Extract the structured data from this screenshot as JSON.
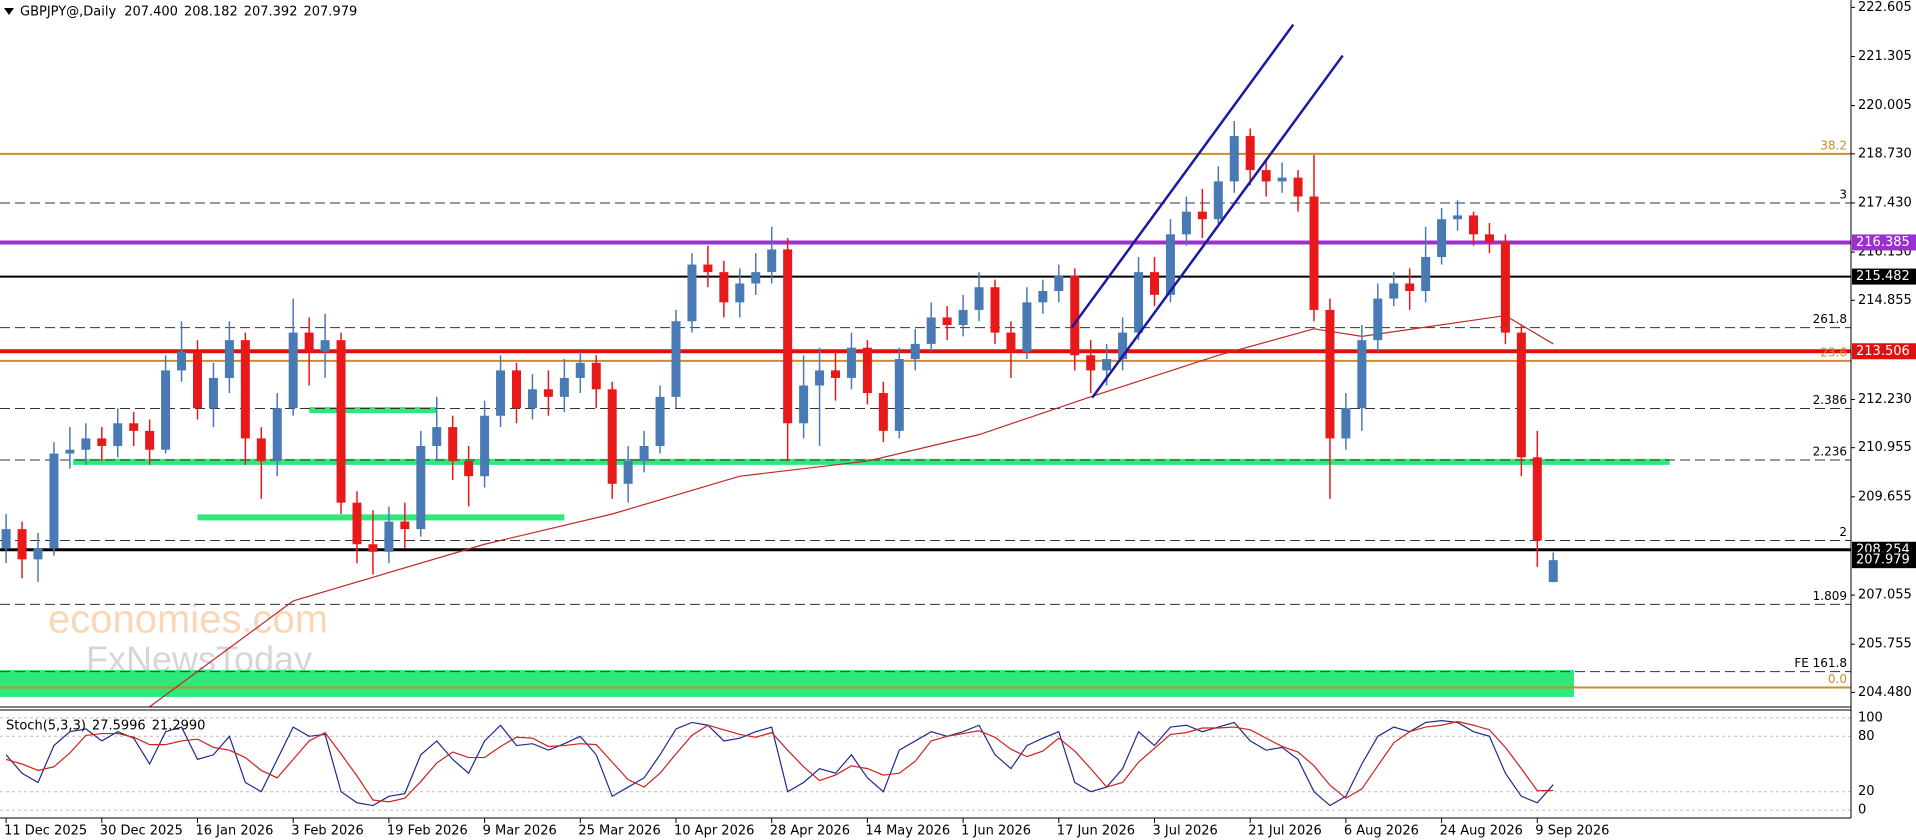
{
  "chart_data": {
    "type": "candlestick",
    "title": "GBPJPY@,Daily",
    "header_values": [
      "207.400",
      "208.182",
      "207.392",
      "207.979"
    ],
    "categories": [
      "11 Dec 2025",
      null,
      null,
      null,
      null,
      null,
      "30 Dec 2025",
      null,
      null,
      null,
      null,
      null,
      "16 Jan 2026",
      null,
      null,
      null,
      null,
      null,
      "3 Feb 2026",
      null,
      null,
      null,
      null,
      null,
      "19 Feb 2026",
      null,
      null,
      null,
      null,
      null,
      "9 Mar 2026",
      null,
      null,
      null,
      null,
      null,
      "25 Mar 2026",
      null,
      null,
      null,
      null,
      null,
      "10 Apr 2026",
      null,
      null,
      null,
      null,
      null,
      "28 Apr 2026",
      null,
      null,
      null,
      null,
      null,
      "14 May 2026",
      null,
      null,
      null,
      null,
      null,
      "1 Jun 2026",
      null,
      null,
      null,
      null,
      null,
      "17 Jun 2026",
      null,
      null,
      null,
      null,
      null,
      "3 Jul 2026",
      null,
      null,
      null,
      null,
      null,
      "21 Jul 2026",
      null,
      null,
      null,
      null,
      null,
      "6 Aug 2026",
      null,
      null,
      null,
      null,
      null,
      "24 Aug 2026",
      null,
      null,
      null,
      null,
      null,
      "9 Sep 2026",
      null
    ],
    "open": [
      208.3,
      208.8,
      208.0,
      208.3,
      210.8,
      210.9,
      211.2,
      211.0,
      211.6,
      211.4,
      210.9,
      213.0,
      213.5,
      212.0,
      212.8,
      213.8,
      211.2,
      210.6,
      212.0,
      214.0,
      213.5,
      213.8,
      209.5,
      208.4,
      208.2,
      209.0,
      208.8,
      211.0,
      211.5,
      210.6,
      210.2,
      211.8,
      213.0,
      212.0,
      212.5,
      212.3,
      212.8,
      213.2,
      212.5,
      210.0,
      210.6,
      211.0,
      212.3,
      214.3,
      215.8,
      215.6,
      214.8,
      215.3,
      215.6,
      216.2,
      211.6,
      212.6,
      213.0,
      212.8,
      213.6,
      212.4,
      211.4,
      213.3,
      213.7,
      214.4,
      214.2,
      214.6,
      215.2,
      214.0,
      213.5,
      214.8,
      215.1,
      215.5,
      213.4,
      213.0,
      213.3,
      214.0,
      215.6,
      215.0,
      216.6,
      217.2,
      217.0,
      218.0,
      219.2,
      218.3,
      218.0,
      218.1,
      217.6,
      214.6,
      211.2,
      212.0,
      213.8,
      214.9,
      215.3,
      215.1,
      216.0,
      217.0,
      217.1,
      216.6,
      216.4,
      214.0,
      210.7,
      207.4
    ],
    "high": [
      209.2,
      209.0,
      208.7,
      211.1,
      211.5,
      211.6,
      211.5,
      212.0,
      211.9,
      211.7,
      213.4,
      214.3,
      213.8,
      213.2,
      214.3,
      214.0,
      211.5,
      212.4,
      214.9,
      214.4,
      214.5,
      214.0,
      209.8,
      209.3,
      209.4,
      209.5,
      211.4,
      212.3,
      211.8,
      211.0,
      212.2,
      213.4,
      213.2,
      212.9,
      213.0,
      213.3,
      213.5,
      213.4,
      212.7,
      211.0,
      211.4,
      212.6,
      214.6,
      216.1,
      216.3,
      215.9,
      215.7,
      216.1,
      216.8,
      216.5,
      213.4,
      213.6,
      213.5,
      214.0,
      213.8,
      212.7,
      213.6,
      214.1,
      214.8,
      214.7,
      215.0,
      215.6,
      215.4,
      214.3,
      215.2,
      215.4,
      215.8,
      215.7,
      213.8,
      213.7,
      214.4,
      216.0,
      216.0,
      217.0,
      217.6,
      217.8,
      218.4,
      219.6,
      219.4,
      218.6,
      218.5,
      218.3,
      218.7,
      214.9,
      212.4,
      214.2,
      215.3,
      215.6,
      215.7,
      216.8,
      217.3,
      217.5,
      217.2,
      216.9,
      216.6,
      214.2,
      211.4,
      208.182
    ],
    "low": [
      207.9,
      207.5,
      207.4,
      208.1,
      210.4,
      210.5,
      210.6,
      210.7,
      211.0,
      210.5,
      210.8,
      212.7,
      211.7,
      211.5,
      212.4,
      210.5,
      209.6,
      210.2,
      211.8,
      212.6,
      212.8,
      209.2,
      207.9,
      207.6,
      207.9,
      208.3,
      208.6,
      210.6,
      210.1,
      209.4,
      209.9,
      211.5,
      211.6,
      211.7,
      211.8,
      211.9,
      212.4,
      212.0,
      209.6,
      209.5,
      210.3,
      210.8,
      212.0,
      214.0,
      215.2,
      214.4,
      214.4,
      215.0,
      215.3,
      210.6,
      211.2,
      211.0,
      212.2,
      212.5,
      212.1,
      211.1,
      211.2,
      213.0,
      213.5,
      213.8,
      213.9,
      214.3,
      213.7,
      212.8,
      213.3,
      214.5,
      214.8,
      213.0,
      212.4,
      212.6,
      213.0,
      213.8,
      214.7,
      214.8,
      216.3,
      216.5,
      216.8,
      217.7,
      217.9,
      217.6,
      217.7,
      217.2,
      214.3,
      209.6,
      210.9,
      211.4,
      213.5,
      214.7,
      214.6,
      214.8,
      215.8,
      216.7,
      216.3,
      216.1,
      213.7,
      210.2,
      207.8,
      207.392
    ],
    "close": [
      208.8,
      208.0,
      208.3,
      210.8,
      210.9,
      211.2,
      211.0,
      211.6,
      211.4,
      210.9,
      213.0,
      213.5,
      212.0,
      212.8,
      213.8,
      211.2,
      210.6,
      212.0,
      214.0,
      213.5,
      213.8,
      209.5,
      208.4,
      208.2,
      209.0,
      208.8,
      211.0,
      211.5,
      210.6,
      210.2,
      211.8,
      213.0,
      212.0,
      212.5,
      212.3,
      212.8,
      213.2,
      212.5,
      210.0,
      210.6,
      211.0,
      212.3,
      214.3,
      215.8,
      215.6,
      214.8,
      215.3,
      215.6,
      216.2,
      211.6,
      212.6,
      213.0,
      212.8,
      213.6,
      212.4,
      211.4,
      213.3,
      213.7,
      214.4,
      214.2,
      214.6,
      215.2,
      214.0,
      213.5,
      214.8,
      215.1,
      215.5,
      213.4,
      213.0,
      213.3,
      214.0,
      215.6,
      215.0,
      216.6,
      217.2,
      217.0,
      218.0,
      219.2,
      218.3,
      218.0,
      218.1,
      217.6,
      214.6,
      211.2,
      212.0,
      213.8,
      214.9,
      215.3,
      215.1,
      216.0,
      217.0,
      217.1,
      216.6,
      216.4,
      214.0,
      210.7,
      208.5,
      207.979
    ],
    "up_color": "#4a7ab4",
    "down_color": "#e8191b",
    "ylim": [
      204.12,
      222.8
    ],
    "yticks": [
      222.605,
      221.305,
      220.005,
      {
        "value": 218.73,
        "label": "218.730"
      },
      {
        "value": 217.43,
        "label": "217.430"
      },
      {
        "value": 216.13,
        "label": "216.130"
      },
      214.855,
      {
        "value": 212.23,
        "label": "212.230"
      },
      210.955,
      209.655,
      207.055,
      205.755,
      {
        "value": 204.48,
        "label": "204.480"
      }
    ],
    "moving_average": {
      "color": "#c0282a",
      "x": [
        9,
        18,
        30,
        38,
        46,
        54,
        61,
        68,
        76,
        82,
        85,
        94,
        97
      ],
      "values": [
        204.1,
        206.9,
        208.4,
        209.2,
        210.2,
        210.6,
        211.3,
        212.3,
        213.4,
        214.1,
        213.9,
        214.45,
        213.7
      ]
    },
    "levels": [
      {
        "value": 218.73,
        "label": "38.2",
        "color": "#c8902a",
        "width": 2,
        "dashed": false,
        "tag": false
      },
      {
        "value": 217.43,
        "label": "3",
        "color": "#333333",
        "width": 1,
        "dashed": true,
        "tag": false
      },
      {
        "value": 216.385,
        "color": "#9b30d0",
        "width": 4,
        "dashed": false,
        "tag": true
      },
      {
        "value": 215.482,
        "color": "#000000",
        "width": 2,
        "dashed": false,
        "tag": true
      },
      {
        "value": 214.13,
        "label": "261.8",
        "color": "#333333",
        "width": 1,
        "dashed": true,
        "tag": false
      },
      {
        "value": 213.506,
        "color": "#e01010",
        "width": 4,
        "dashed": false,
        "tag": true
      },
      {
        "value": 213.25,
        "label": "23.6",
        "color": "#c8902a",
        "width": 2,
        "dashed": false,
        "tag": false
      },
      {
        "value": 211.99,
        "label": "2.386",
        "color": "#333333",
        "width": 1,
        "dashed": true,
        "tag": false
      },
      {
        "value": 210.63,
        "label": "2.236",
        "color": "#333333",
        "width": 1,
        "dashed": true,
        "tag": false
      },
      {
        "value": 208.5,
        "label": "2",
        "color": "#333333",
        "width": 1,
        "dashed": true,
        "tag": false
      },
      {
        "value": 208.254,
        "color": "#000000",
        "width": 3,
        "dashed": false,
        "tag": true
      },
      {
        "value": 206.81,
        "label": "1.809",
        "color": "#333333",
        "width": 1,
        "dashed": true,
        "tag": false
      },
      {
        "value": 205.03,
        "label": "FE 161.8",
        "color": "#333333",
        "width": 1,
        "dashed": true,
        "tag": false
      },
      {
        "value": 204.61,
        "label": "0.0",
        "color": "#c8902a",
        "width": 2,
        "dashed": false,
        "tag": false
      }
    ],
    "zones": [
      {
        "y": [
          204.36,
          205.07
        ],
        "x": [
          -0.4,
          98.3
        ],
        "color": "#2ee87a"
      }
    ],
    "segments": [
      {
        "y": 211.95,
        "x": [
          19,
          27
        ],
        "color": "#2ee87a"
      },
      {
        "y": 210.58,
        "x": [
          4.2,
          104.3
        ],
        "color": "#2ee87a"
      },
      {
        "y": 209.11,
        "x": [
          12,
          35
        ],
        "color": "#2ee87a"
      }
    ],
    "trendlines": [
      {
        "x": [
          66.8,
          80.7
        ],
        "y": [
          214.13,
          222.15
        ],
        "color": "#1a1aa0"
      },
      {
        "x": [
          68.1,
          83.8
        ],
        "y": [
          212.28,
          221.33
        ],
        "color": "#1a1aa0"
      }
    ],
    "close_tag": true,
    "watermarks": [
      "economies.com",
      "FxNewsToday"
    ],
    "stoch": {
      "title": "Stoch(5,3,3)",
      "header_values": [
        "27.5996",
        "21.2990"
      ],
      "ylim": [
        -8.5,
        108.5
      ],
      "yticks": [
        100,
        80,
        20,
        0
      ],
      "series": [
        {
          "name": "%K",
          "color": "#1f2a8c",
          "values": [
            60,
            40,
            30,
            70,
            85,
            88,
            75,
            85,
            78,
            50,
            85,
            90,
            55,
            60,
            80,
            30,
            20,
            55,
            90,
            80,
            82,
            20,
            8,
            5,
            15,
            18,
            60,
            75,
            55,
            40,
            75,
            92,
            70,
            72,
            65,
            72,
            80,
            60,
            15,
            25,
            35,
            60,
            88,
            95,
            92,
            75,
            78,
            85,
            90,
            20,
            30,
            45,
            40,
            60,
            35,
            20,
            65,
            75,
            85,
            80,
            85,
            92,
            60,
            45,
            70,
            78,
            85,
            30,
            20,
            25,
            45,
            85,
            70,
            90,
            92,
            85,
            90,
            95,
            75,
            65,
            68,
            55,
            20,
            5,
            15,
            50,
            80,
            90,
            85,
            95,
            97,
            95,
            85,
            80,
            40,
            15,
            8,
            27.5996
          ]
        },
        {
          "name": "%D",
          "color": "#d02020",
          "values": [
            55,
            50,
            43,
            47,
            62,
            81,
            83,
            83,
            79,
            71,
            71,
            75,
            77,
            68,
            65,
            57,
            43,
            35,
            55,
            75,
            84,
            61,
            37,
            11,
            9,
            13,
            31,
            51,
            63,
            57,
            57,
            69,
            79,
            78,
            69,
            70,
            72,
            71,
            52,
            33,
            25,
            40,
            61,
            81,
            92,
            87,
            82,
            79,
            84,
            65,
            47,
            32,
            38,
            48,
            45,
            38,
            40,
            53,
            75,
            80,
            83,
            86,
            79,
            66,
            58,
            64,
            78,
            64,
            45,
            25,
            30,
            52,
            67,
            82,
            84,
            89,
            89,
            90,
            87,
            78,
            69,
            63,
            48,
            27,
            13,
            23,
            48,
            73,
            85,
            90,
            92,
            96,
            92,
            87,
            68,
            45,
            21,
            21.299
          ]
        }
      ]
    }
  }
}
